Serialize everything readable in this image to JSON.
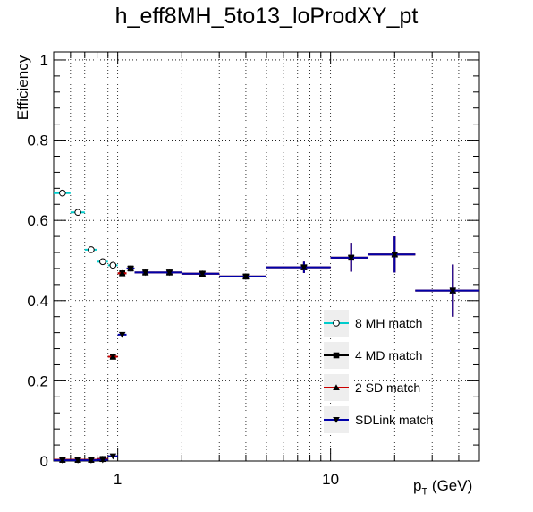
{
  "chart_data": {
    "type": "scatter",
    "title": "h_eff8MH_5to13_loProdXY_pt",
    "xlabel": "p_T (GeV)",
    "ylabel": "Efficiency",
    "x_scale": "log",
    "xlim": [
      0.5,
      50
    ],
    "ylim": [
      0,
      1.02
    ],
    "x_ticks": [
      "1",
      "10"
    ],
    "y_ticks": [
      "0",
      "0.2",
      "0.4",
      "0.6",
      "0.8",
      "1"
    ],
    "grid": true,
    "legend_position": "bottom-right",
    "colors": {
      "8mh": "#00cccc",
      "4md": "#000000",
      "2sd": "#cc0000",
      "sdlink": "#0000aa"
    },
    "series": [
      {
        "name": "8 MH match",
        "marker": "open-circle",
        "points": [
          {
            "x": 0.55,
            "xlo": 0.5,
            "xhi": 0.6,
            "y": 0.668,
            "err": 0.006
          },
          {
            "x": 0.65,
            "xlo": 0.6,
            "xhi": 0.7,
            "y": 0.62,
            "err": 0.006
          },
          {
            "x": 0.75,
            "xlo": 0.7,
            "xhi": 0.8,
            "y": 0.527,
            "err": 0.006
          },
          {
            "x": 0.85,
            "xlo": 0.8,
            "xhi": 0.9,
            "y": 0.497,
            "err": 0.006
          },
          {
            "x": 0.95,
            "xlo": 0.9,
            "xhi": 1.0,
            "y": 0.488,
            "err": 0.006
          }
        ]
      },
      {
        "name": "4 MD match",
        "marker": "filled-square",
        "points": [
          {
            "x": 0.55,
            "xlo": 0.5,
            "xhi": 0.6,
            "y": 0.003,
            "err": 0.002
          },
          {
            "x": 0.65,
            "xlo": 0.6,
            "xhi": 0.7,
            "y": 0.003,
            "err": 0.002
          },
          {
            "x": 0.75,
            "xlo": 0.7,
            "xhi": 0.8,
            "y": 0.003,
            "err": 0.002
          },
          {
            "x": 0.85,
            "xlo": 0.8,
            "xhi": 0.9,
            "y": 0.005,
            "err": 0.002
          },
          {
            "x": 0.95,
            "xlo": 0.9,
            "xhi": 1.0,
            "y": 0.26,
            "err": 0.006
          },
          {
            "x": 1.05,
            "xlo": 1.0,
            "xhi": 1.1,
            "y": 0.468,
            "err": 0.006
          },
          {
            "x": 1.15,
            "xlo": 1.1,
            "xhi": 1.2,
            "y": 0.48,
            "err": 0.006
          },
          {
            "x": 1.35,
            "xlo": 1.2,
            "xhi": 1.5,
            "y": 0.47,
            "err": 0.005
          },
          {
            "x": 1.75,
            "xlo": 1.5,
            "xhi": 2.0,
            "y": 0.47,
            "err": 0.005
          },
          {
            "x": 2.5,
            "xlo": 2.0,
            "xhi": 3.0,
            "y": 0.467,
            "err": 0.005
          },
          {
            "x": 4.0,
            "xlo": 3.0,
            "xhi": 5.0,
            "y": 0.46,
            "err": 0.006
          },
          {
            "x": 7.5,
            "xlo": 5.0,
            "xhi": 10.0,
            "y": 0.483,
            "err": 0.014
          },
          {
            "x": 12.5,
            "xlo": 10.0,
            "xhi": 15.0,
            "y": 0.507,
            "err": 0.035
          },
          {
            "x": 20.0,
            "xlo": 15.0,
            "xhi": 25.0,
            "y": 0.515,
            "err": 0.045
          },
          {
            "x": 37.5,
            "xlo": 25.0,
            "xhi": 50.0,
            "y": 0.425,
            "err": 0.065
          }
        ]
      },
      {
        "name": "2 SD match",
        "marker": "filled-triangle",
        "points": [
          {
            "x": 0.55,
            "xlo": 0.5,
            "xhi": 0.6,
            "y": 0.003,
            "err": 0.002
          },
          {
            "x": 0.65,
            "xlo": 0.6,
            "xhi": 0.7,
            "y": 0.003,
            "err": 0.002
          },
          {
            "x": 0.75,
            "xlo": 0.7,
            "xhi": 0.8,
            "y": 0.003,
            "err": 0.002
          },
          {
            "x": 0.85,
            "xlo": 0.8,
            "xhi": 0.9,
            "y": 0.005,
            "err": 0.002
          },
          {
            "x": 0.95,
            "xlo": 0.9,
            "xhi": 1.0,
            "y": 0.26,
            "err": 0.006
          },
          {
            "x": 1.05,
            "xlo": 1.0,
            "xhi": 1.1,
            "y": 0.468,
            "err": 0.006
          },
          {
            "x": 1.15,
            "xlo": 1.1,
            "xhi": 1.2,
            "y": 0.48,
            "err": 0.006
          },
          {
            "x": 1.35,
            "xlo": 1.2,
            "xhi": 1.5,
            "y": 0.47,
            "err": 0.005
          },
          {
            "x": 1.75,
            "xlo": 1.5,
            "xhi": 2.0,
            "y": 0.47,
            "err": 0.005
          },
          {
            "x": 2.5,
            "xlo": 2.0,
            "xhi": 3.0,
            "y": 0.467,
            "err": 0.005
          },
          {
            "x": 4.0,
            "xlo": 3.0,
            "xhi": 5.0,
            "y": 0.46,
            "err": 0.006
          },
          {
            "x": 7.5,
            "xlo": 5.0,
            "xhi": 10.0,
            "y": 0.483,
            "err": 0.014
          },
          {
            "x": 12.5,
            "xlo": 10.0,
            "xhi": 15.0,
            "y": 0.507,
            "err": 0.035
          },
          {
            "x": 20.0,
            "xlo": 15.0,
            "xhi": 25.0,
            "y": 0.515,
            "err": 0.045
          },
          {
            "x": 37.5,
            "xlo": 25.0,
            "xhi": 50.0,
            "y": 0.425,
            "err": 0.065
          }
        ]
      },
      {
        "name": "SDLink match",
        "marker": "filled-down-triangle",
        "points": [
          {
            "x": 0.55,
            "xlo": 0.5,
            "xhi": 0.6,
            "y": 0.002,
            "err": 0.002
          },
          {
            "x": 0.65,
            "xlo": 0.6,
            "xhi": 0.7,
            "y": 0.002,
            "err": 0.002
          },
          {
            "x": 0.75,
            "xlo": 0.7,
            "xhi": 0.8,
            "y": 0.002,
            "err": 0.002
          },
          {
            "x": 0.85,
            "xlo": 0.8,
            "xhi": 0.9,
            "y": 0.003,
            "err": 0.002
          },
          {
            "x": 0.95,
            "xlo": 0.9,
            "xhi": 1.0,
            "y": 0.012,
            "err": 0.003
          },
          {
            "x": 1.05,
            "xlo": 1.0,
            "xhi": 1.1,
            "y": 0.315,
            "err": 0.006
          },
          {
            "x": 1.15,
            "xlo": 1.1,
            "xhi": 1.2,
            "y": 0.48,
            "err": 0.006
          },
          {
            "x": 1.35,
            "xlo": 1.2,
            "xhi": 1.5,
            "y": 0.47,
            "err": 0.005
          },
          {
            "x": 1.75,
            "xlo": 1.5,
            "xhi": 2.0,
            "y": 0.47,
            "err": 0.005
          },
          {
            "x": 2.5,
            "xlo": 2.0,
            "xhi": 3.0,
            "y": 0.467,
            "err": 0.005
          },
          {
            "x": 4.0,
            "xlo": 3.0,
            "xhi": 5.0,
            "y": 0.46,
            "err": 0.006
          },
          {
            "x": 7.5,
            "xlo": 5.0,
            "xhi": 10.0,
            "y": 0.483,
            "err": 0.014
          },
          {
            "x": 12.5,
            "xlo": 10.0,
            "xhi": 15.0,
            "y": 0.507,
            "err": 0.035
          },
          {
            "x": 20.0,
            "xlo": 15.0,
            "xhi": 25.0,
            "y": 0.515,
            "err": 0.045
          },
          {
            "x": 37.5,
            "xlo": 25.0,
            "xhi": 50.0,
            "y": 0.425,
            "err": 0.065
          }
        ]
      }
    ]
  }
}
